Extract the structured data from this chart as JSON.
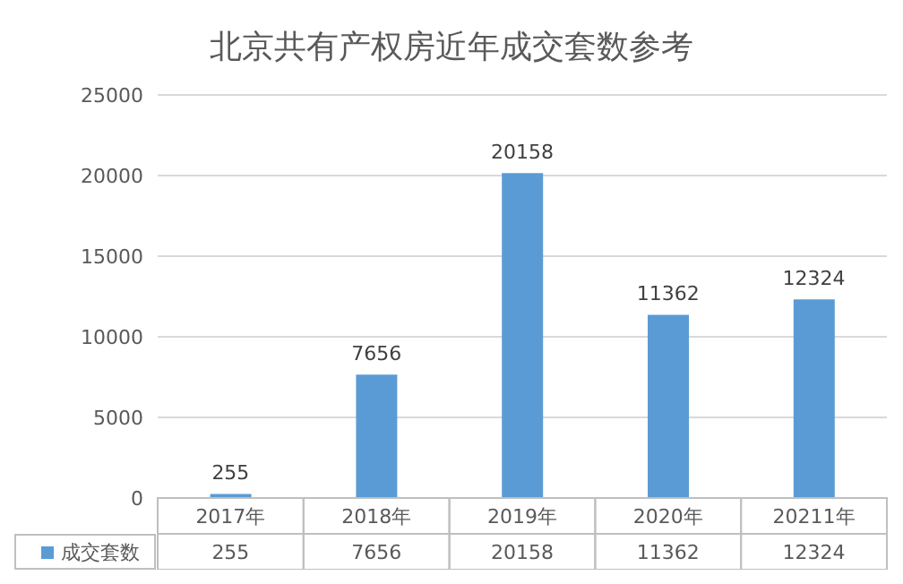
{
  "chart_data": {
    "type": "bar",
    "title": "北京共有产权房近年成交套数参考",
    "categories": [
      "2017年",
      "2018年",
      "2019年",
      "2020年",
      "20211年"
    ],
    "series": [
      {
        "name": "成交套数",
        "color": "#5b9bd5",
        "values": [
          255,
          7656,
          20158,
          11362,
          12324
        ]
      }
    ],
    "annotations": [
      {
        "text": "255",
        "x": "2017年",
        "y": 255
      },
      {
        "text": "7656",
        "x": "2018年",
        "y": 7656
      },
      {
        "text": "20158",
        "x": "2019年",
        "y": 20158
      },
      {
        "text": "11362",
        "x": "2020年",
        "y": 11362
      },
      {
        "text": "12324",
        "x": "20211年",
        "y": 12324
      }
    ],
    "ylim": [
      0,
      25000
    ],
    "yticks": [
      0,
      5000,
      10000,
      15000,
      20000,
      25000
    ],
    "grid": "y",
    "legend": "bottom",
    "data_labels": true
  }
}
